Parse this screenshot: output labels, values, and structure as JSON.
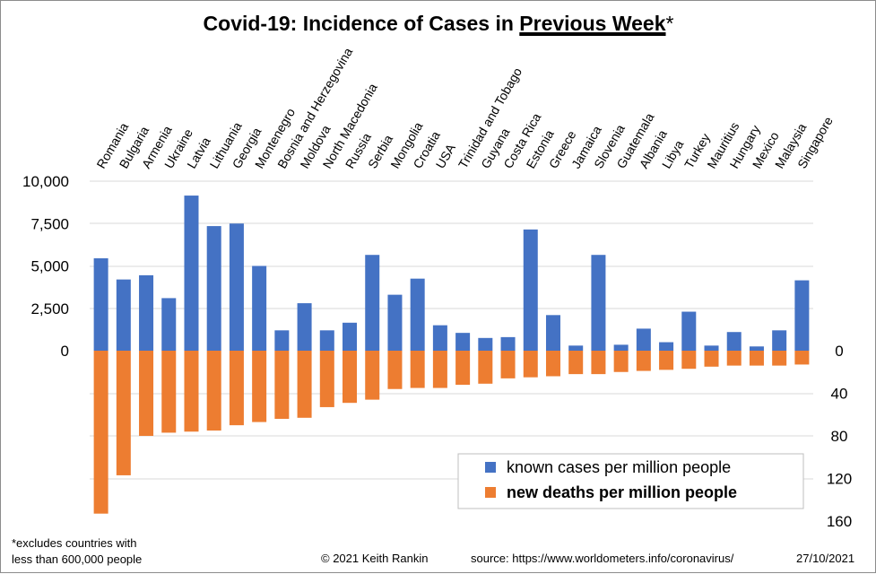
{
  "chart_title": {
    "prefix": "Covid-19: Incidence of Cases in ",
    "emphasis": "Previous Week",
    "suffix": "*"
  },
  "footer": {
    "note_line1": "*excludes  countries with",
    "note_line2": "less than 600,000  people",
    "copyright": "©  2021   Keith  Rankin",
    "source": "source:  https://www.worldometers.info/coronavirus/",
    "date": "27/10/2021"
  },
  "colors": {
    "cases": "#4472c4",
    "deaths": "#ed7d31",
    "grid": "#d9d9d9"
  },
  "chart_data": {
    "type": "bar",
    "title": "Covid-19: Incidence of Cases in Previous Week*",
    "categories": [
      "Romania",
      "Bulgaria",
      "Armenia",
      "Ukraine",
      "Latvia",
      "Lithuania",
      "Georgia",
      "Montenegro",
      "Bosnia and Herzegovina",
      "Moldova",
      "North Macedonia",
      "Russia",
      "Serbia",
      "Mongolia",
      "Croatia",
      "USA",
      "Trinidad and Tobago",
      "Guyana",
      "Costa Rica",
      "Estonia",
      "Greece",
      "Jamaica",
      "Slovenia",
      "Guatemala",
      "Albania",
      "Libya",
      "Turkey",
      "Mauritius",
      "Hungary",
      "Mexico",
      "Malaysia",
      "Singapore"
    ],
    "series": [
      {
        "name": "known cases per million people",
        "axis": "left",
        "direction": "up",
        "color": "#4472c4",
        "values": [
          5450,
          4200,
          4450,
          3100,
          9150,
          7350,
          7500,
          5000,
          1200,
          2800,
          1200,
          1650,
          5650,
          3300,
          4250,
          1500,
          1050,
          750,
          800,
          7150,
          2100,
          300,
          5650,
          350,
          1300,
          500,
          2300,
          300,
          1100,
          250,
          1200,
          4150
        ]
      },
      {
        "name": "new deaths per million people",
        "axis": "right",
        "direction": "down",
        "color": "#ed7d31",
        "values": [
          153,
          117,
          80,
          77,
          76,
          75,
          70,
          67,
          64,
          63,
          53,
          49,
          46,
          36,
          35,
          35,
          32,
          31,
          26,
          25,
          24,
          22,
          22,
          20,
          19,
          18,
          17,
          15,
          14,
          14,
          14,
          13
        ]
      }
    ],
    "left_axis": {
      "ticks": [
        "10,000",
        "7,500",
        "5,000",
        "2,500",
        "0"
      ],
      "ylim": [
        0,
        10000
      ]
    },
    "right_axis": {
      "ticks": [
        "0",
        "40",
        "80",
        "120",
        "160"
      ],
      "ylim": [
        0,
        160
      ]
    },
    "legend": {
      "placement": "bottom-right"
    },
    "grid": true
  }
}
